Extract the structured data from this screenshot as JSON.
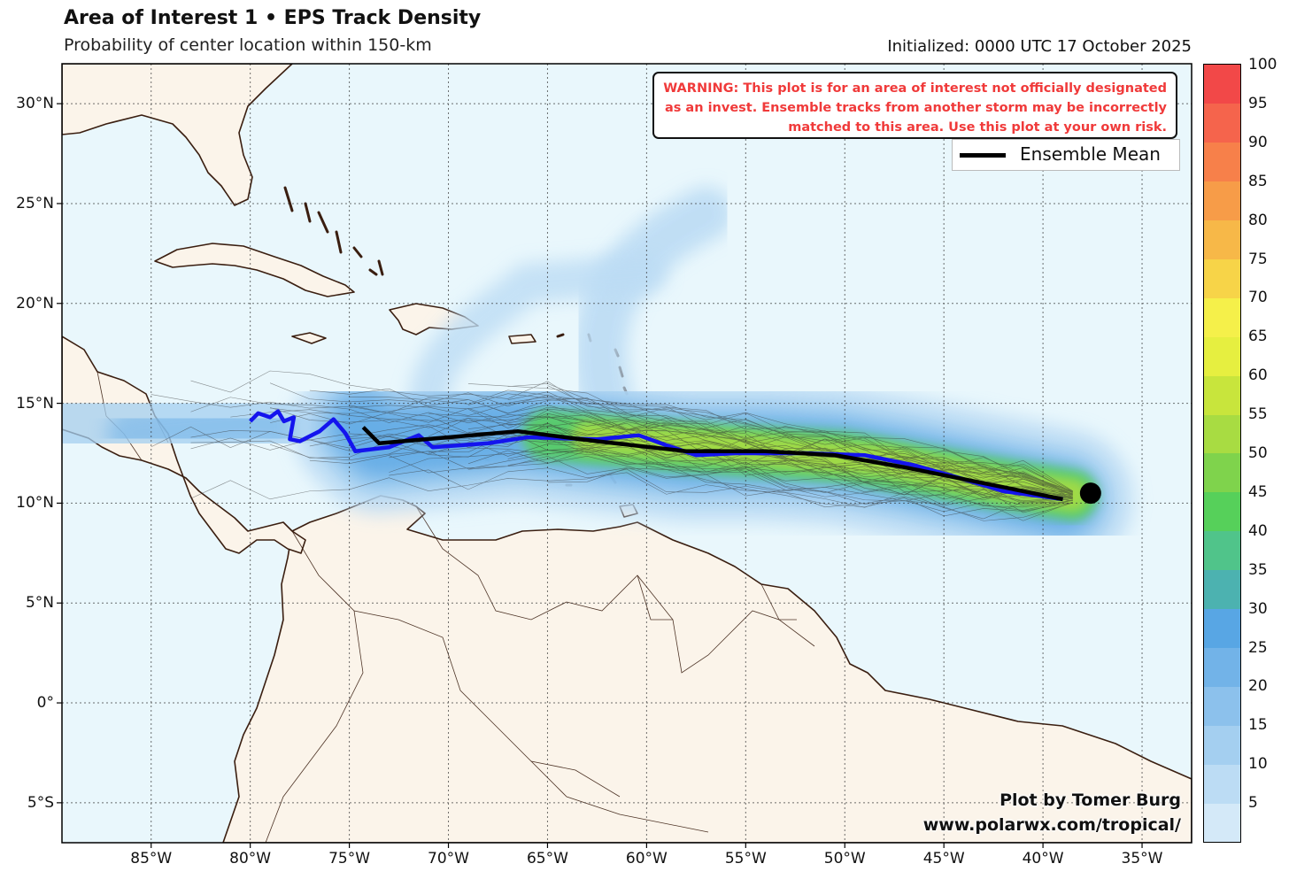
{
  "title": "Area of Interest 1 • EPS Track Density",
  "subtitle": "Probability of center location within 150-km",
  "initialized": "Initialized: 0000 UTC 17 October 2025",
  "warning": "WARNING: This plot is for an area of interest not officially designated as an invest. Ensemble tracks from another storm may be incorrectly matched to this area. Use this plot at your own risk.",
  "legend": {
    "ensemble_mean": "Ensemble Mean"
  },
  "credit": {
    "line1": "Plot by Tomer Burg",
    "line2": "www.polarwx.com/tropical/"
  },
  "longitude_labels": [
    "85°W",
    "80°W",
    "75°W",
    "70°W",
    "65°W",
    "60°W",
    "55°W",
    "50°W",
    "45°W",
    "40°W",
    "35°W"
  ],
  "latitude_labels": [
    "30°N",
    "25°N",
    "20°N",
    "15°N",
    "10°N",
    "5°N",
    "0°",
    "5°S"
  ],
  "colorbar": {
    "ticks": [
      "5",
      "10",
      "15",
      "20",
      "25",
      "30",
      "35",
      "40",
      "45",
      "50",
      "55",
      "60",
      "65",
      "70",
      "75",
      "80",
      "85",
      "90",
      "95",
      "100"
    ],
    "colors": [
      "#d4e9f8",
      "#bcdcf4",
      "#a4cff0",
      "#8cc1ec",
      "#72b3e8",
      "#58a6e4",
      "#4cb2b0",
      "#50c48a",
      "#56d05a",
      "#7fd34c",
      "#a8dc42",
      "#c8e53c",
      "#e6ef40",
      "#f5f04a",
      "#f7d448",
      "#f7b848",
      "#f79c48",
      "#f7804a",
      "#f5644c",
      "#f24848"
    ]
  },
  "map": {
    "lon_range": [
      -89.5,
      -32.5
    ],
    "lat_range": [
      -7,
      32
    ],
    "ocean_color": "#e9f7fc",
    "land_color": "#fbf4ea",
    "coast_color": "#3a1e10",
    "ensemble_mean_track": [
      [
        -74.3,
        13.8
      ],
      [
        -73.5,
        13.0
      ],
      [
        -70,
        13.3
      ],
      [
        -66.5,
        13.6
      ],
      [
        -62.5,
        13.1
      ],
      [
        -58,
        12.6
      ],
      [
        -54,
        12.6
      ],
      [
        -50.5,
        12.4
      ],
      [
        -47,
        11.8
      ],
      [
        -43,
        11.0
      ],
      [
        -39,
        10.2
      ]
    ],
    "deterministic_track": [
      [
        -80,
        14.1
      ],
      [
        -79.6,
        14.5
      ],
      [
        -79,
        14.3
      ],
      [
        -78.6,
        14.6
      ],
      [
        -78.3,
        14.1
      ],
      [
        -77.8,
        14.3
      ],
      [
        -78,
        13.2
      ],
      [
        -77.5,
        13.1
      ],
      [
        -76.5,
        13.6
      ],
      [
        -75.8,
        14.2
      ],
      [
        -75.2,
        13.5
      ],
      [
        -74.7,
        12.6
      ],
      [
        -73,
        12.8
      ],
      [
        -71.5,
        13.4
      ],
      [
        -70.8,
        12.8
      ],
      [
        -68,
        13.0
      ],
      [
        -66,
        13.3
      ],
      [
        -62.5,
        13.2
      ],
      [
        -60.4,
        13.4
      ],
      [
        -59,
        12.9
      ],
      [
        -57.5,
        12.4
      ],
      [
        -55.5,
        12.5
      ],
      [
        -52,
        12.5
      ],
      [
        -49,
        12.4
      ],
      [
        -46.5,
        11.9
      ],
      [
        -44,
        11.2
      ],
      [
        -42,
        10.6
      ],
      [
        -39,
        10.2
      ]
    ],
    "initial_position": [
      -37.6,
      10.5
    ]
  }
}
